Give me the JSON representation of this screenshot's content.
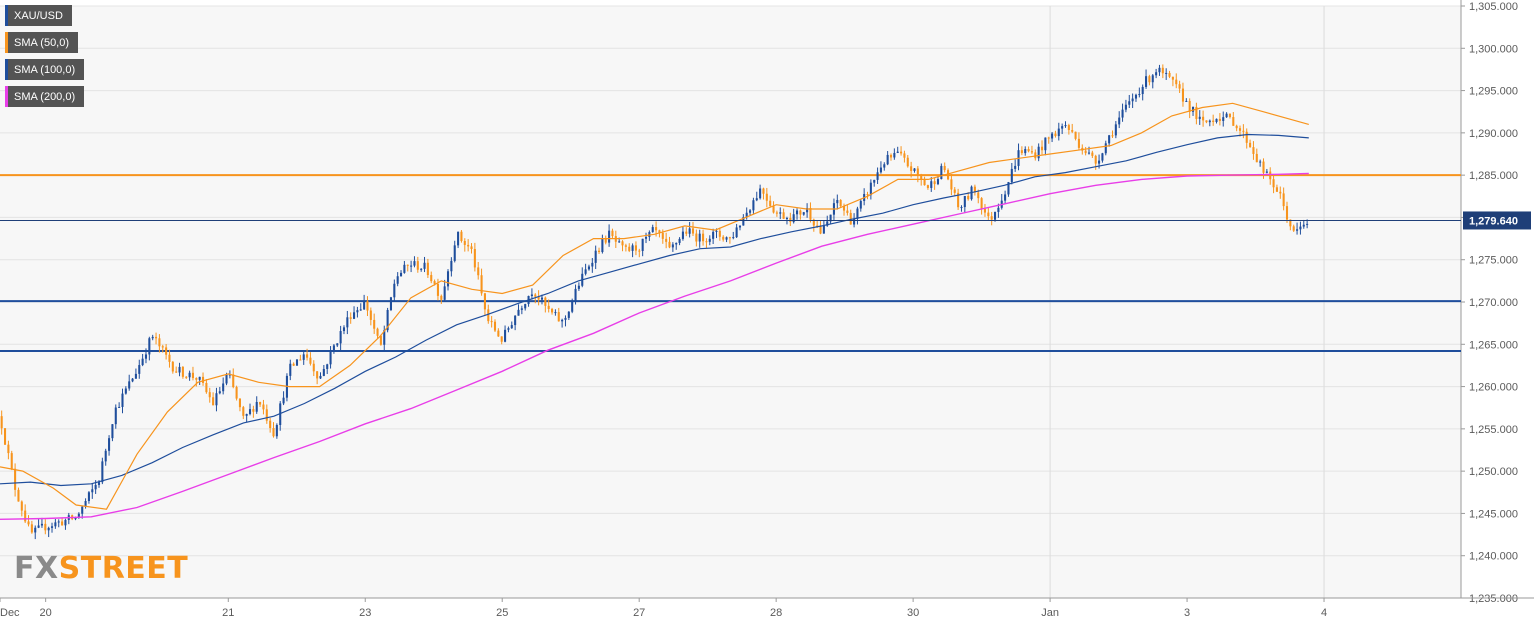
{
  "chart_data": {
    "type": "candlestick",
    "symbol": "XAU/USD",
    "legend": [
      {
        "name": "XAU/USD",
        "color": "#1f4e9c"
      },
      {
        "name": "SMA (50,0)",
        "color": "#f7941d"
      },
      {
        "name": "SMA (100,0)",
        "color": "#1f4e9c"
      },
      {
        "name": "SMA (200,0)",
        "color": "#e83ee8"
      }
    ],
    "ylim": [
      1235,
      1305
    ],
    "ytick_labels": [
      "1,305.000",
      "1,300.000",
      "1,295.000",
      "1,290.000",
      "1,285.000",
      "1,280.000",
      "1,275.000",
      "1,270.000",
      "1,265.000",
      "1,260.000",
      "1,255.000",
      "1,250.000",
      "1,245.000",
      "1,240.000",
      "1,235.000"
    ],
    "y_ticks": [
      1305,
      1300,
      1295,
      1290,
      1285,
      1280,
      1275,
      1270,
      1265,
      1260,
      1255,
      1250,
      1245,
      1240,
      1235
    ],
    "x_ticks": [
      {
        "label": "Dec",
        "t": 0
      },
      {
        "label": "20",
        "t": 6
      },
      {
        "label": "21",
        "t": 30
      },
      {
        "label": "23",
        "t": 48
      },
      {
        "label": "25",
        "t": 66
      },
      {
        "label": "27",
        "t": 84
      },
      {
        "label": "28",
        "t": 102
      },
      {
        "label": "30",
        "t": 120
      },
      {
        "label": "Jan",
        "t": 138
      },
      {
        "label": "3",
        "t": 156
      },
      {
        "label": "4",
        "t": 174
      }
    ],
    "x_range": [
      0,
      192
    ],
    "dividers_at_t": [
      138,
      174
    ],
    "horizontal_levels": [
      {
        "value": 1285.0,
        "color": "#f7941d"
      },
      {
        "value": 1270.1,
        "color": "#1f4e9c"
      },
      {
        "value": 1264.2,
        "color": "#1f4e9c"
      }
    ],
    "last_price": {
      "value": 1279.64,
      "label": "1,279.640",
      "color": "#1f3f78"
    },
    "price_path": [
      {
        "t": 0,
        "v": 1256.5
      },
      {
        "t": 2,
        "v": 1248.0
      },
      {
        "t": 4,
        "v": 1242.5
      },
      {
        "t": 6,
        "v": 1243.5
      },
      {
        "t": 10,
        "v": 1244.5
      },
      {
        "t": 13,
        "v": 1249.0
      },
      {
        "t": 15,
        "v": 1257.0
      },
      {
        "t": 18,
        "v": 1262.0
      },
      {
        "t": 20,
        "v": 1266.0
      },
      {
        "t": 23,
        "v": 1262.0
      },
      {
        "t": 26,
        "v": 1261.0
      },
      {
        "t": 28,
        "v": 1258.0
      },
      {
        "t": 30,
        "v": 1261.5
      },
      {
        "t": 32,
        "v": 1256.0
      },
      {
        "t": 34,
        "v": 1258.5
      },
      {
        "t": 36,
        "v": 1254.5
      },
      {
        "t": 38,
        "v": 1262.0
      },
      {
        "t": 40,
        "v": 1264.0
      },
      {
        "t": 42,
        "v": 1261.0
      },
      {
        "t": 44,
        "v": 1265.0
      },
      {
        "t": 46,
        "v": 1268.5
      },
      {
        "t": 48,
        "v": 1270.0
      },
      {
        "t": 50,
        "v": 1264.5
      },
      {
        "t": 52,
        "v": 1273.0
      },
      {
        "t": 54,
        "v": 1274.5
      },
      {
        "t": 56,
        "v": 1274.0
      },
      {
        "t": 58,
        "v": 1270.5
      },
      {
        "t": 60,
        "v": 1278.0
      },
      {
        "t": 62,
        "v": 1276.0
      },
      {
        "t": 64,
        "v": 1268.0
      },
      {
        "t": 66,
        "v": 1265.5
      },
      {
        "t": 68,
        "v": 1269.0
      },
      {
        "t": 70,
        "v": 1271.5
      },
      {
        "t": 72,
        "v": 1269.0
      },
      {
        "t": 74,
        "v": 1267.5
      },
      {
        "t": 76,
        "v": 1272.0
      },
      {
        "t": 78,
        "v": 1275.5
      },
      {
        "t": 80,
        "v": 1278.0
      },
      {
        "t": 82,
        "v": 1276.0
      },
      {
        "t": 84,
        "v": 1276.5
      },
      {
        "t": 86,
        "v": 1278.5
      },
      {
        "t": 88,
        "v": 1276.0
      },
      {
        "t": 90,
        "v": 1278.5
      },
      {
        "t": 92,
        "v": 1277.5
      },
      {
        "t": 94,
        "v": 1278.0
      },
      {
        "t": 96,
        "v": 1277.5
      },
      {
        "t": 98,
        "v": 1280.5
      },
      {
        "t": 100,
        "v": 1283.5
      },
      {
        "t": 102,
        "v": 1280.5
      },
      {
        "t": 104,
        "v": 1280.0
      },
      {
        "t": 106,
        "v": 1281.0
      },
      {
        "t": 108,
        "v": 1278.0
      },
      {
        "t": 110,
        "v": 1282.0
      },
      {
        "t": 112,
        "v": 1279.5
      },
      {
        "t": 114,
        "v": 1283.0
      },
      {
        "t": 116,
        "v": 1286.5
      },
      {
        "t": 118,
        "v": 1287.5
      },
      {
        "t": 120,
        "v": 1285.5
      },
      {
        "t": 122,
        "v": 1283.5
      },
      {
        "t": 124,
        "v": 1286.0
      },
      {
        "t": 126,
        "v": 1281.0
      },
      {
        "t": 128,
        "v": 1283.5
      },
      {
        "t": 130,
        "v": 1279.5
      },
      {
        "t": 132,
        "v": 1283.0
      },
      {
        "t": 134,
        "v": 1288.0
      },
      {
        "t": 136,
        "v": 1287.5
      },
      {
        "t": 138,
        "v": 1289.5
      },
      {
        "t": 140,
        "v": 1291.0
      },
      {
        "t": 142,
        "v": 1288.5
      },
      {
        "t": 144,
        "v": 1286.5
      },
      {
        "t": 146,
        "v": 1290.0
      },
      {
        "t": 148,
        "v": 1293.0
      },
      {
        "t": 150,
        "v": 1295.5
      },
      {
        "t": 152,
        "v": 1297.5
      },
      {
        "t": 154,
        "v": 1296.0
      },
      {
        "t": 156,
        "v": 1293.5
      },
      {
        "t": 158,
        "v": 1291.0
      },
      {
        "t": 160,
        "v": 1292.0
      },
      {
        "t": 162,
        "v": 1291.5
      },
      {
        "t": 164,
        "v": 1289.0
      },
      {
        "t": 166,
        "v": 1285.5
      },
      {
        "t": 168,
        "v": 1283.0
      },
      {
        "t": 170,
        "v": 1278.0
      },
      {
        "t": 172,
        "v": 1279.6
      }
    ],
    "candle_count": 390,
    "sma50": [
      {
        "t": 0,
        "v": 1250.5
      },
      {
        "t": 3,
        "v": 1250.0
      },
      {
        "t": 7,
        "v": 1248.0
      },
      {
        "t": 10,
        "v": 1246.0
      },
      {
        "t": 14,
        "v": 1245.5
      },
      {
        "t": 18,
        "v": 1252.0
      },
      {
        "t": 22,
        "v": 1257.0
      },
      {
        "t": 26,
        "v": 1260.5
      },
      {
        "t": 30,
        "v": 1261.5
      },
      {
        "t": 34,
        "v": 1260.5
      },
      {
        "t": 38,
        "v": 1260.0
      },
      {
        "t": 42,
        "v": 1260.0
      },
      {
        "t": 46,
        "v": 1262.5
      },
      {
        "t": 50,
        "v": 1266.0
      },
      {
        "t": 54,
        "v": 1270.5
      },
      {
        "t": 58,
        "v": 1272.5
      },
      {
        "t": 62,
        "v": 1271.5
      },
      {
        "t": 66,
        "v": 1271.0
      },
      {
        "t": 70,
        "v": 1272.0
      },
      {
        "t": 74,
        "v": 1275.5
      },
      {
        "t": 78,
        "v": 1277.5
      },
      {
        "t": 82,
        "v": 1277.5
      },
      {
        "t": 86,
        "v": 1278.0
      },
      {
        "t": 90,
        "v": 1279.0
      },
      {
        "t": 94,
        "v": 1278.5
      },
      {
        "t": 98,
        "v": 1280.0
      },
      {
        "t": 102,
        "v": 1281.5
      },
      {
        "t": 106,
        "v": 1281.0
      },
      {
        "t": 110,
        "v": 1281.0
      },
      {
        "t": 114,
        "v": 1282.5
      },
      {
        "t": 118,
        "v": 1284.5
      },
      {
        "t": 122,
        "v": 1284.5
      },
      {
        "t": 126,
        "v": 1285.5
      },
      {
        "t": 130,
        "v": 1286.5
      },
      {
        "t": 134,
        "v": 1287.0
      },
      {
        "t": 138,
        "v": 1287.5
      },
      {
        "t": 142,
        "v": 1288.0
      },
      {
        "t": 146,
        "v": 1288.5
      },
      {
        "t": 150,
        "v": 1290.0
      },
      {
        "t": 154,
        "v": 1292.0
      },
      {
        "t": 158,
        "v": 1293.0
      },
      {
        "t": 162,
        "v": 1293.5
      },
      {
        "t": 166,
        "v": 1292.5
      },
      {
        "t": 170,
        "v": 1291.5
      },
      {
        "t": 172,
        "v": 1291.0
      }
    ],
    "sma100": [
      {
        "t": 0,
        "v": 1248.5
      },
      {
        "t": 4,
        "v": 1248.7
      },
      {
        "t": 8,
        "v": 1248.3
      },
      {
        "t": 12,
        "v": 1248.5
      },
      {
        "t": 16,
        "v": 1249.5
      },
      {
        "t": 20,
        "v": 1251.0
      },
      {
        "t": 24,
        "v": 1252.8
      },
      {
        "t": 28,
        "v": 1254.3
      },
      {
        "t": 32,
        "v": 1255.7
      },
      {
        "t": 36,
        "v": 1256.5
      },
      {
        "t": 40,
        "v": 1258.0
      },
      {
        "t": 44,
        "v": 1259.8
      },
      {
        "t": 48,
        "v": 1261.8
      },
      {
        "t": 52,
        "v": 1263.5
      },
      {
        "t": 56,
        "v": 1265.5
      },
      {
        "t": 60,
        "v": 1267.3
      },
      {
        "t": 64,
        "v": 1268.5
      },
      {
        "t": 68,
        "v": 1269.8
      },
      {
        "t": 72,
        "v": 1271.0
      },
      {
        "t": 76,
        "v": 1272.5
      },
      {
        "t": 80,
        "v": 1273.5
      },
      {
        "t": 84,
        "v": 1274.5
      },
      {
        "t": 88,
        "v": 1275.5
      },
      {
        "t": 92,
        "v": 1276.3
      },
      {
        "t": 96,
        "v": 1276.5
      },
      {
        "t": 100,
        "v": 1277.5
      },
      {
        "t": 104,
        "v": 1278.3
      },
      {
        "t": 108,
        "v": 1279.0
      },
      {
        "t": 112,
        "v": 1279.8
      },
      {
        "t": 116,
        "v": 1280.5
      },
      {
        "t": 120,
        "v": 1281.5
      },
      {
        "t": 124,
        "v": 1282.3
      },
      {
        "t": 128,
        "v": 1283.0
      },
      {
        "t": 132,
        "v": 1283.8
      },
      {
        "t": 136,
        "v": 1284.8
      },
      {
        "t": 140,
        "v": 1285.3
      },
      {
        "t": 144,
        "v": 1286.0
      },
      {
        "t": 148,
        "v": 1286.7
      },
      {
        "t": 152,
        "v": 1287.7
      },
      {
        "t": 156,
        "v": 1288.6
      },
      {
        "t": 160,
        "v": 1289.4
      },
      {
        "t": 164,
        "v": 1289.8
      },
      {
        "t": 168,
        "v": 1289.7
      },
      {
        "t": 172,
        "v": 1289.4
      }
    ],
    "sma200": [
      {
        "t": 0,
        "v": 1244.3
      },
      {
        "t": 6,
        "v": 1244.4
      },
      {
        "t": 12,
        "v": 1244.6
      },
      {
        "t": 18,
        "v": 1245.7
      },
      {
        "t": 24,
        "v": 1247.6
      },
      {
        "t": 30,
        "v": 1249.6
      },
      {
        "t": 36,
        "v": 1251.6
      },
      {
        "t": 42,
        "v": 1253.5
      },
      {
        "t": 48,
        "v": 1255.6
      },
      {
        "t": 54,
        "v": 1257.4
      },
      {
        "t": 60,
        "v": 1259.6
      },
      {
        "t": 66,
        "v": 1261.8
      },
      {
        "t": 72,
        "v": 1264.3
      },
      {
        "t": 78,
        "v": 1266.3
      },
      {
        "t": 84,
        "v": 1268.7
      },
      {
        "t": 90,
        "v": 1270.7
      },
      {
        "t": 96,
        "v": 1272.5
      },
      {
        "t": 102,
        "v": 1274.6
      },
      {
        "t": 108,
        "v": 1276.6
      },
      {
        "t": 114,
        "v": 1278.0
      },
      {
        "t": 120,
        "v": 1279.2
      },
      {
        "t": 126,
        "v": 1280.4
      },
      {
        "t": 132,
        "v": 1281.6
      },
      {
        "t": 138,
        "v": 1282.8
      },
      {
        "t": 144,
        "v": 1283.8
      },
      {
        "t": 150,
        "v": 1284.5
      },
      {
        "t": 156,
        "v": 1284.9
      },
      {
        "t": 162,
        "v": 1285.0
      },
      {
        "t": 168,
        "v": 1285.1
      },
      {
        "t": 172,
        "v": 1285.2
      }
    ],
    "colors": {
      "up": "#1f4e9c",
      "down": "#f7941d",
      "grid": "#e4e4e4",
      "plot_bg": "#f7f7f7",
      "axis_text": "#5a5a5a"
    }
  },
  "watermark": {
    "part1": "FX",
    "part2": "STREET"
  }
}
